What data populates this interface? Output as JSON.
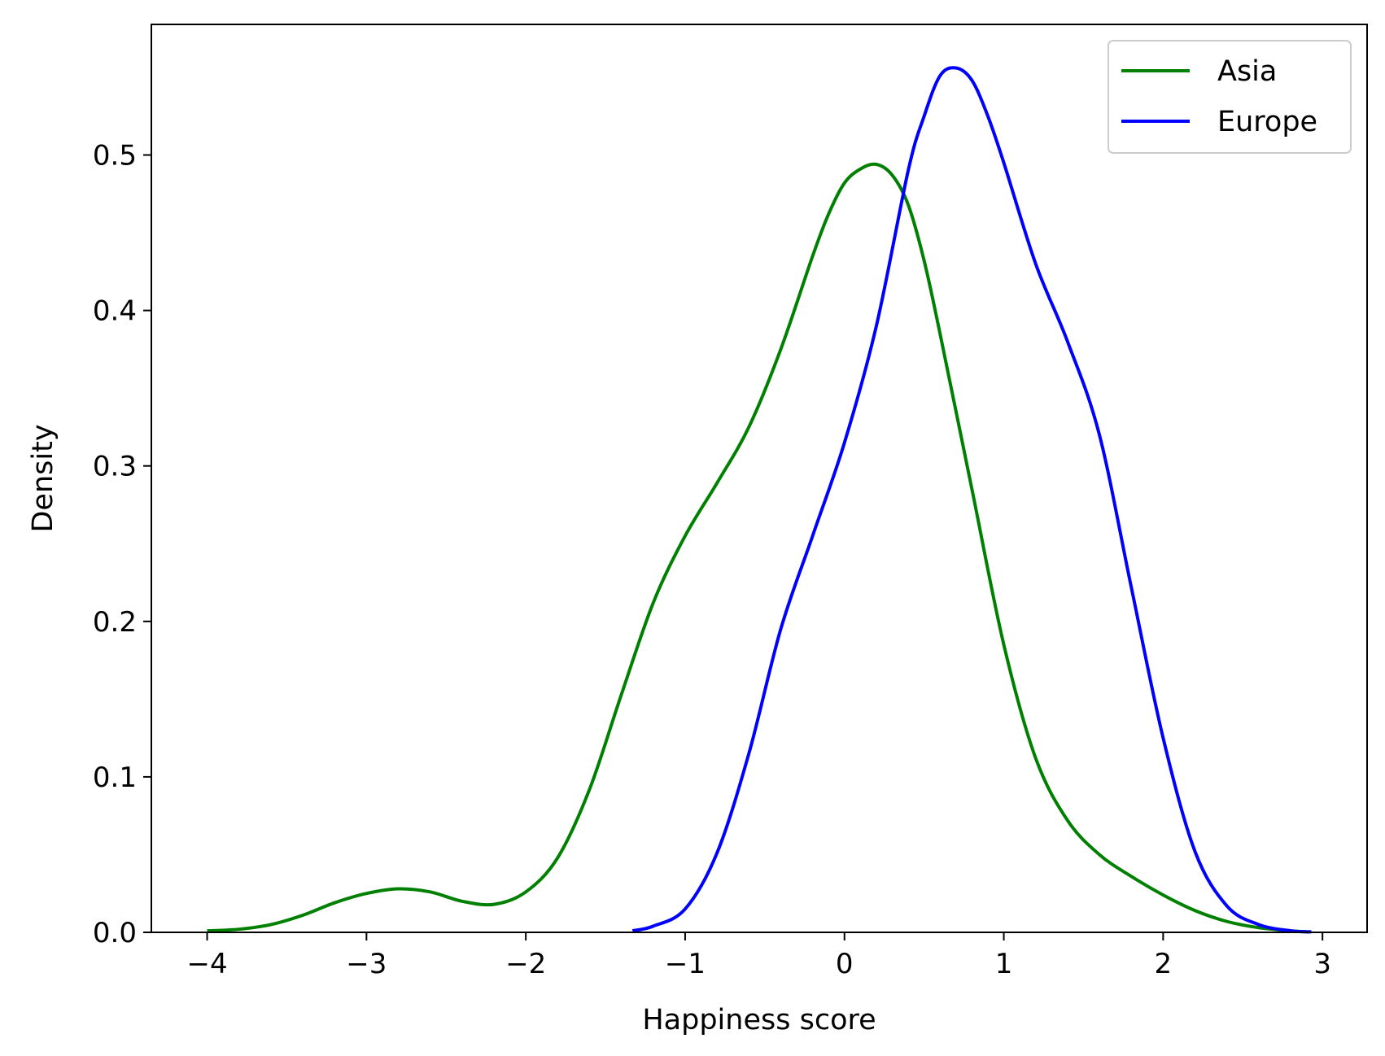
{
  "chart_data": {
    "type": "line",
    "title": "",
    "xlabel": "Happiness score",
    "ylabel": "Density",
    "xlim": [
      -4.35,
      3.28
    ],
    "ylim": [
      0.0,
      0.584
    ],
    "x_ticks": [
      -4,
      -3,
      -2,
      -1,
      0,
      1,
      2,
      3
    ],
    "x_tick_labels": [
      "−4",
      "−3",
      "−2",
      "−1",
      "0",
      "1",
      "2",
      "3"
    ],
    "y_ticks": [
      0.0,
      0.1,
      0.2,
      0.3,
      0.4,
      0.5
    ],
    "y_tick_labels": [
      "0.0",
      "0.1",
      "0.2",
      "0.3",
      "0.4",
      "0.5"
    ],
    "grid": false,
    "legend_position": "top-right",
    "series": [
      {
        "name": "Asia",
        "color": "#008000",
        "points": [
          [
            -4.0,
            0.001
          ],
          [
            -3.8,
            0.002
          ],
          [
            -3.6,
            0.005
          ],
          [
            -3.4,
            0.011
          ],
          [
            -3.2,
            0.019
          ],
          [
            -3.0,
            0.025
          ],
          [
            -2.8,
            0.028
          ],
          [
            -2.6,
            0.026
          ],
          [
            -2.4,
            0.02
          ],
          [
            -2.2,
            0.018
          ],
          [
            -2.0,
            0.026
          ],
          [
            -1.8,
            0.048
          ],
          [
            -1.6,
            0.092
          ],
          [
            -1.4,
            0.153
          ],
          [
            -1.2,
            0.212
          ],
          [
            -1.0,
            0.255
          ],
          [
            -0.8,
            0.289
          ],
          [
            -0.6,
            0.325
          ],
          [
            -0.4,
            0.375
          ],
          [
            -0.2,
            0.435
          ],
          [
            -0.1,
            0.462
          ],
          [
            0.0,
            0.482
          ],
          [
            0.1,
            0.491
          ],
          [
            0.2,
            0.494
          ],
          [
            0.3,
            0.487
          ],
          [
            0.4,
            0.468
          ],
          [
            0.5,
            0.432
          ],
          [
            0.6,
            0.385
          ],
          [
            0.8,
            0.285
          ],
          [
            1.0,
            0.185
          ],
          [
            1.2,
            0.112
          ],
          [
            1.4,
            0.072
          ],
          [
            1.6,
            0.05
          ],
          [
            1.8,
            0.036
          ],
          [
            2.0,
            0.024
          ],
          [
            2.2,
            0.014
          ],
          [
            2.4,
            0.007
          ],
          [
            2.6,
            0.003
          ],
          [
            2.8,
            0.001
          ],
          [
            2.92,
            0.0003
          ]
        ]
      },
      {
        "name": "Europe",
        "color": "#0000ff",
        "points": [
          [
            -1.33,
            0.001
          ],
          [
            -1.2,
            0.004
          ],
          [
            -1.0,
            0.015
          ],
          [
            -0.8,
            0.051
          ],
          [
            -0.6,
            0.115
          ],
          [
            -0.4,
            0.195
          ],
          [
            -0.2,
            0.255
          ],
          [
            0.0,
            0.315
          ],
          [
            0.2,
            0.39
          ],
          [
            0.4,
            0.49
          ],
          [
            0.5,
            0.525
          ],
          [
            0.6,
            0.551
          ],
          [
            0.7,
            0.556
          ],
          [
            0.8,
            0.548
          ],
          [
            0.9,
            0.525
          ],
          [
            1.0,
            0.495
          ],
          [
            1.2,
            0.43
          ],
          [
            1.4,
            0.38
          ],
          [
            1.6,
            0.32
          ],
          [
            1.8,
            0.222
          ],
          [
            2.0,
            0.125
          ],
          [
            2.2,
            0.052
          ],
          [
            2.4,
            0.017
          ],
          [
            2.6,
            0.005
          ],
          [
            2.8,
            0.001
          ],
          [
            2.93,
            0.0003
          ]
        ]
      }
    ]
  }
}
